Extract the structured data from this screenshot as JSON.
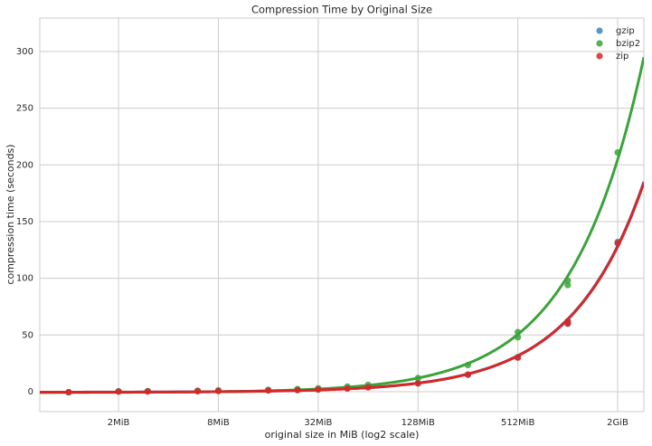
{
  "chart_data": {
    "type": "scatter",
    "title": "Compression Time by Original Size",
    "x_label": "original size in MiB (log2 scale)",
    "y_label": "compression time (seconds)",
    "xscale": "log2",
    "xlim": [
      0.67,
      2947
    ],
    "xticks": [
      {
        "value": 2,
        "label": "2MiB"
      },
      {
        "value": 8,
        "label": "8MiB"
      },
      {
        "value": 32,
        "label": "32MiB"
      },
      {
        "value": 128,
        "label": "128MiB"
      },
      {
        "value": 512,
        "label": "512MiB"
      },
      {
        "value": 2048,
        "label": "2GiB"
      }
    ],
    "ylim": [
      -17.6,
      329.5
    ],
    "yticks": [
      0,
      50,
      100,
      150,
      200,
      250,
      300
    ],
    "grid": true,
    "legend": "upper right",
    "regression": true,
    "series": [
      {
        "name": "gzip",
        "color": "#3a86bd",
        "x": [
          1,
          2,
          3,
          6,
          8,
          16,
          24,
          32,
          48,
          64,
          128,
          256,
          512,
          1024,
          1024,
          2048
        ],
        "values": [
          -0.5,
          0.2,
          0.3,
          0.5,
          0.7,
          1.3,
          1.4,
          2,
          3,
          4,
          7.5,
          15,
          30.5,
          60,
          62,
          132
        ]
      },
      {
        "name": "bzip2",
        "color": "#3aa33a",
        "x": [
          1,
          2,
          3,
          6,
          8,
          16,
          24,
          32,
          48,
          64,
          128,
          256,
          512,
          512,
          1024,
          1024,
          2048
        ],
        "values": [
          -0.4,
          0.3,
          0.5,
          0.9,
          1.2,
          1.6,
          2.3,
          3,
          4.5,
          6,
          12,
          23.5,
          48,
          52.5,
          94,
          98,
          211
        ]
      },
      {
        "name": "zip",
        "color": "#d62728",
        "x": [
          1,
          2,
          3,
          6,
          8,
          16,
          24,
          32,
          48,
          64,
          128,
          256,
          512,
          1024,
          1024,
          2048
        ],
        "values": [
          -0.5,
          0.1,
          0.2,
          0.4,
          0.6,
          1.1,
          1.4,
          1.9,
          2.8,
          3.8,
          7.3,
          15,
          30,
          60,
          62,
          131
        ]
      }
    ]
  }
}
